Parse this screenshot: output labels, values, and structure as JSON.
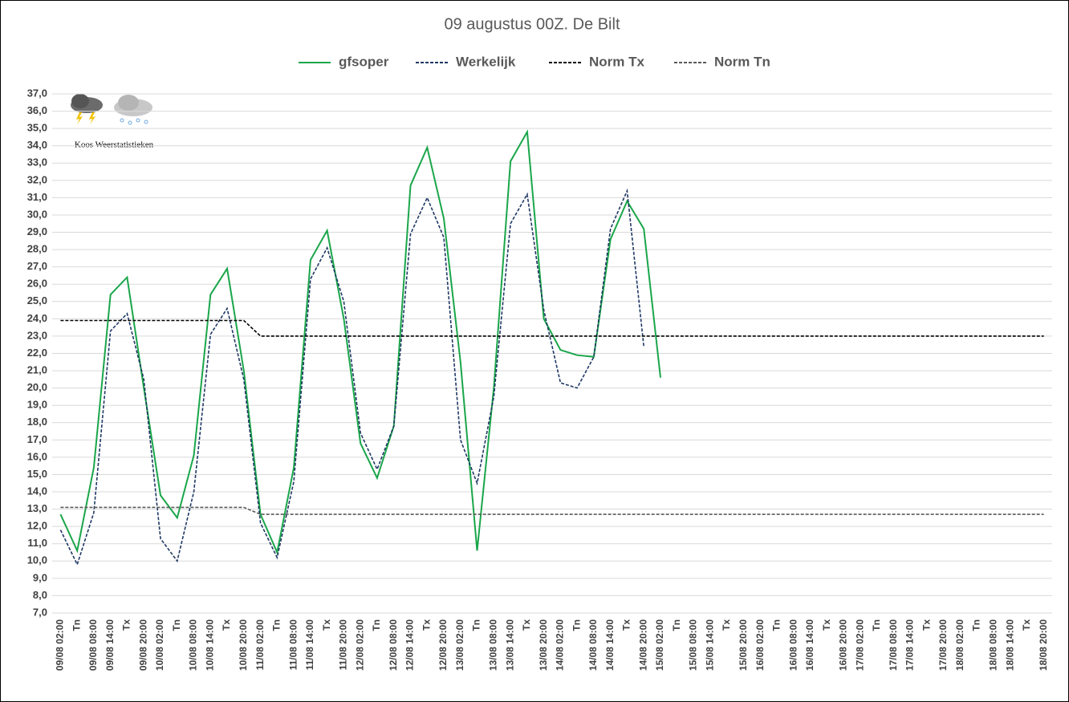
{
  "chart_data": {
    "type": "line",
    "title": "09 augustus 00Z. De Bilt",
    "watermark": "Koos Weerstatistieken",
    "categories": [
      "09/08 02:00",
      "Tn",
      "09/08 08:00",
      "09/08 14:00",
      "Tx",
      "09/08 20:00",
      "10/08 02:00",
      "Tn",
      "10/08 08:00",
      "10/08 14:00",
      "Tx",
      "10/08 20:00",
      "11/08 02:00",
      "Tn",
      "11/08 08:00",
      "11/08 14:00",
      "Tx",
      "11/08 20:00",
      "12/08 02:00",
      "Tn",
      "12/08 08:00",
      "12/08 14:00",
      "Tx",
      "12/08 20:00",
      "13/08 02:00",
      "Tn",
      "13/08 08:00",
      "13/08 14:00",
      "Tx",
      "13/08 20:00",
      "14/08 02:00",
      "Tn",
      "14/08 08:00",
      "14/08 14:00",
      "Tx",
      "14/08 20:00",
      "15/08 02:00",
      "Tn",
      "15/08 08:00",
      "15/08 14:00",
      "Tx",
      "15/08 20:00",
      "16/08 02:00",
      "Tn",
      "16/08 08:00",
      "16/08 14:00",
      "Tx",
      "16/08 20:00",
      "17/08 02:00",
      "Tn",
      "17/08 08:00",
      "17/08 14:00",
      "Tx",
      "17/08 20:00",
      "18/08 02:00",
      "Tn",
      "18/08 08:00",
      "18/08 14:00",
      "Tx",
      "18/08 20:00"
    ],
    "series": [
      {
        "name": "gfsoper",
        "color": "#1aa64a",
        "style": "solid",
        "values": [
          12.7,
          10.6,
          15.4,
          25.4,
          26.4,
          20.0,
          13.8,
          12.5,
          16.1,
          25.4,
          26.9,
          21.0,
          12.7,
          10.5,
          15.4,
          27.4,
          29.1,
          24.0,
          16.8,
          14.8,
          17.8,
          31.7,
          33.9,
          29.8,
          21.5,
          10.6,
          20.0,
          33.1,
          34.8,
          24.0,
          22.2,
          21.9,
          21.8,
          28.6,
          30.8,
          29.2,
          20.6,
          null,
          null,
          null,
          null,
          null,
          null,
          null,
          null,
          null,
          null,
          null,
          null,
          null,
          null,
          null,
          null,
          null,
          null,
          null,
          null,
          null,
          null,
          null
        ]
      },
      {
        "name": "Werkelijk",
        "color": "#1f3864",
        "style": "dashed",
        "values": [
          11.8,
          9.8,
          12.8,
          23.3,
          24.3,
          20.5,
          11.3,
          10.0,
          14.0,
          23.1,
          24.6,
          20.5,
          12.2,
          10.2,
          14.6,
          26.3,
          28.1,
          25.0,
          17.4,
          15.3,
          17.8,
          28.9,
          31.0,
          28.7,
          17.0,
          14.5,
          19.5,
          29.5,
          31.2,
          24.5,
          20.3,
          20.0,
          21.8,
          29.2,
          31.4,
          22.4,
          null,
          null,
          null,
          null,
          null,
          null,
          null,
          null,
          null,
          null,
          null,
          null,
          null,
          null,
          null,
          null,
          null,
          null,
          null,
          null,
          null,
          null,
          null,
          null
        ]
      },
      {
        "name": "Norm Tx",
        "color": "#000000",
        "style": "dashed",
        "values": [
          23.9,
          23.9,
          23.9,
          23.9,
          23.9,
          23.9,
          23.9,
          23.9,
          23.9,
          23.9,
          23.9,
          23.9,
          23.0,
          23.0,
          23.0,
          23.0,
          23.0,
          23.0,
          23.0,
          23.0,
          23.0,
          23.0,
          23.0,
          23.0,
          23.0,
          23.0,
          23.0,
          23.0,
          23.0,
          23.0,
          23.0,
          23.0,
          23.0,
          23.0,
          23.0,
          23.0,
          23.0,
          23.0,
          23.0,
          23.0,
          23.0,
          23.0,
          23.0,
          23.0,
          23.0,
          23.0,
          23.0,
          23.0,
          23.0,
          23.0,
          23.0,
          23.0,
          23.0,
          23.0,
          23.0,
          23.0,
          23.0,
          23.0,
          23.0,
          23.0
        ]
      },
      {
        "name": "Norm Tn",
        "color": "#595959",
        "style": "dashed",
        "values": [
          13.1,
          13.1,
          13.1,
          13.1,
          13.1,
          13.1,
          13.1,
          13.1,
          13.1,
          13.1,
          13.1,
          13.1,
          12.7,
          12.7,
          12.7,
          12.7,
          12.7,
          12.7,
          12.7,
          12.7,
          12.7,
          12.7,
          12.7,
          12.7,
          12.7,
          12.7,
          12.7,
          12.7,
          12.7,
          12.7,
          12.7,
          12.7,
          12.7,
          12.7,
          12.7,
          12.7,
          12.7,
          12.7,
          12.7,
          12.7,
          12.7,
          12.7,
          12.7,
          12.7,
          12.7,
          12.7,
          12.7,
          12.7,
          12.7,
          12.7,
          12.7,
          12.7,
          12.7,
          12.7,
          12.7,
          12.7,
          12.7,
          12.7,
          12.7,
          12.7
        ]
      }
    ],
    "ylim": [
      7,
      37
    ],
    "yticks": [
      {
        "value": 7,
        "label": "7,0"
      },
      {
        "value": 8,
        "label": "8,0"
      },
      {
        "value": 9,
        "label": "9,0"
      },
      {
        "value": 10,
        "label": "10,0"
      },
      {
        "value": 11,
        "label": "11,0"
      },
      {
        "value": 12,
        "label": "12,0"
      },
      {
        "value": 13,
        "label": "13,0"
      },
      {
        "value": 14,
        "label": "14,0"
      },
      {
        "value": 15,
        "label": "15,0"
      },
      {
        "value": 16,
        "label": "16,0"
      },
      {
        "value": 17,
        "label": "17,0"
      },
      {
        "value": 18,
        "label": "18,0"
      },
      {
        "value": 19,
        "label": "19,0"
      },
      {
        "value": 20,
        "label": "20,0"
      },
      {
        "value": 21,
        "label": "21,0"
      },
      {
        "value": 22,
        "label": "22,0"
      },
      {
        "value": 23,
        "label": "23,0"
      },
      {
        "value": 24,
        "label": "24,0"
      },
      {
        "value": 25,
        "label": "25,0"
      },
      {
        "value": 26,
        "label": "26,0"
      },
      {
        "value": 27,
        "label": "27,0"
      },
      {
        "value": 28,
        "label": "28,0"
      },
      {
        "value": 29,
        "label": "29,0"
      },
      {
        "value": 30,
        "label": "30,0"
      },
      {
        "value": 31,
        "label": "31,0"
      },
      {
        "value": 32,
        "label": "32,0"
      },
      {
        "value": 33,
        "label": "33,0"
      },
      {
        "value": 34,
        "label": "34,0"
      },
      {
        "value": 35,
        "label": "35,0"
      },
      {
        "value": 36,
        "label": "36,0"
      },
      {
        "value": 37,
        "label": "37,0"
      }
    ],
    "grid": true,
    "legend": "top"
  }
}
